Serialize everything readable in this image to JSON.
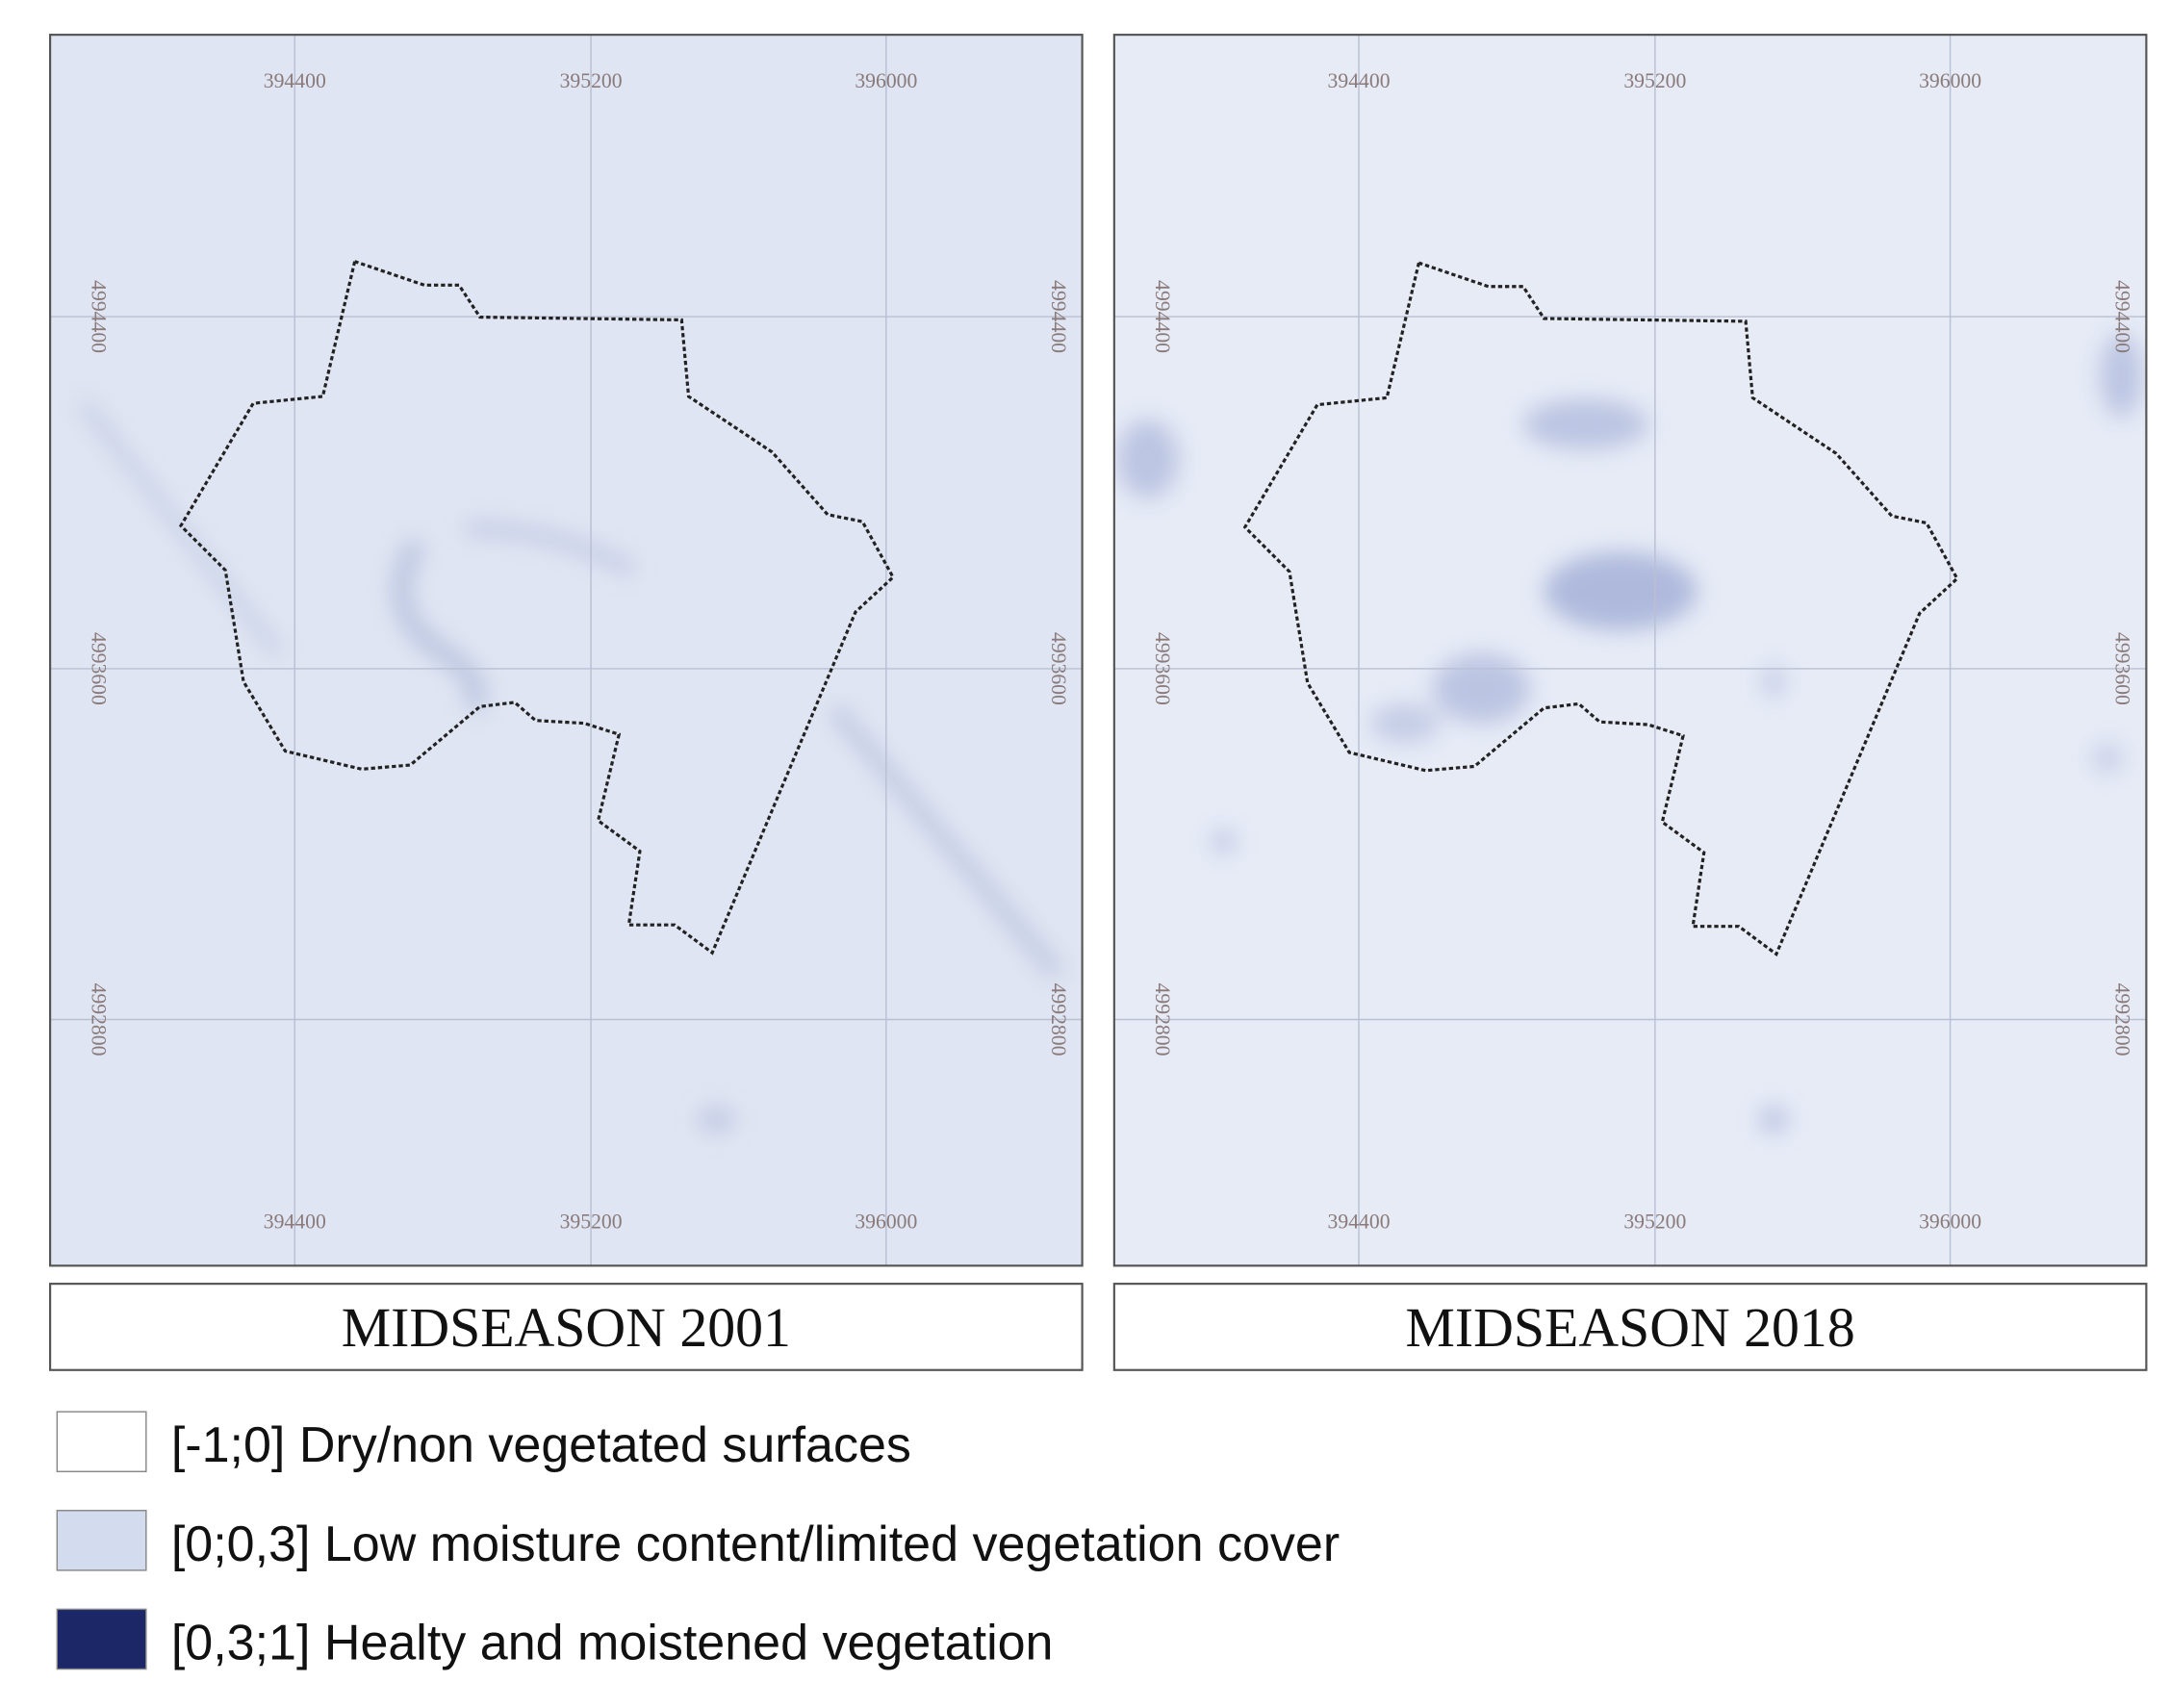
{
  "grid": {
    "x_labels": [
      "394400",
      "395200",
      "396000"
    ],
    "y_labels": [
      "4994400",
      "4993600",
      "4992800"
    ]
  },
  "panels": [
    {
      "caption": "MIDSEASON 2001"
    },
    {
      "caption": "MIDSEASON 2018"
    }
  ],
  "legend": [
    {
      "label": "[-1;0] Dry/non vegetated surfaces",
      "color": "#ffffff"
    },
    {
      "label": "[0;0,3] Low moisture content/limited vegetation cover",
      "color": "#d3dcef"
    },
    {
      "label": "[0,3;1] Healty and moistened vegetation",
      "color": "#1c2767"
    }
  ]
}
